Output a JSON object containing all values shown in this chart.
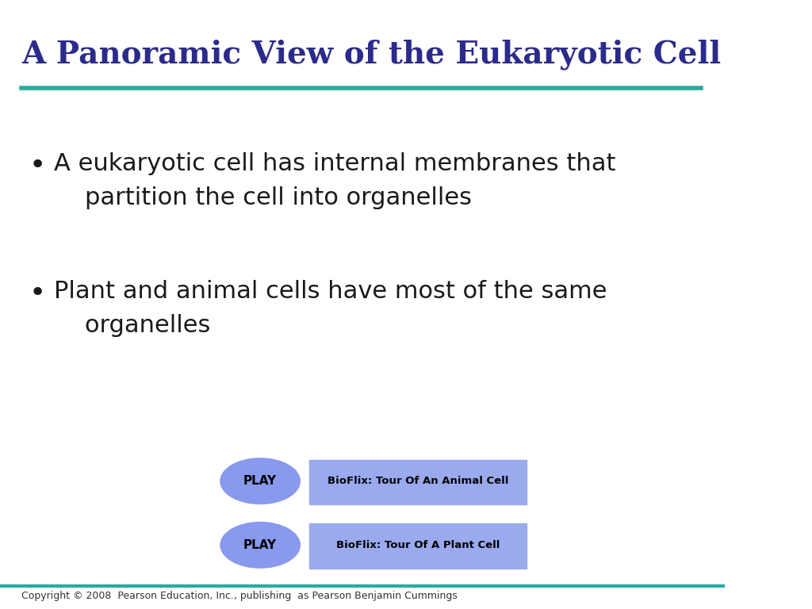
{
  "title": "A Panoramic View of the Eukaryotic Cell",
  "title_color": "#2B2B8B",
  "title_fontsize": 28,
  "background_color": "#FFFFFF",
  "teal_line_color": "#2AABA0",
  "bullet_points": [
    "A eukaryotic cell has internal membranes that\n    partition the cell into organelles",
    "Plant and animal cells have most of the same\n    organelles"
  ],
  "bullet_color": "#1A1A1A",
  "bullet_fontsize": 22,
  "play_button_color": "#8899EE",
  "play_text_color": "#000000",
  "play_label_1": "BioFlix: Tour Of An Animal Cell",
  "play_label_2": "BioFlix: Tour Of A Plant Cell",
  "play_box_color": "#99AAEE",
  "copyright_text": "Copyright © 2008  Pearson Education, Inc., publishing  as Pearson Benjamin Cummings",
  "copyright_color": "#333333",
  "copyright_fontsize": 9
}
